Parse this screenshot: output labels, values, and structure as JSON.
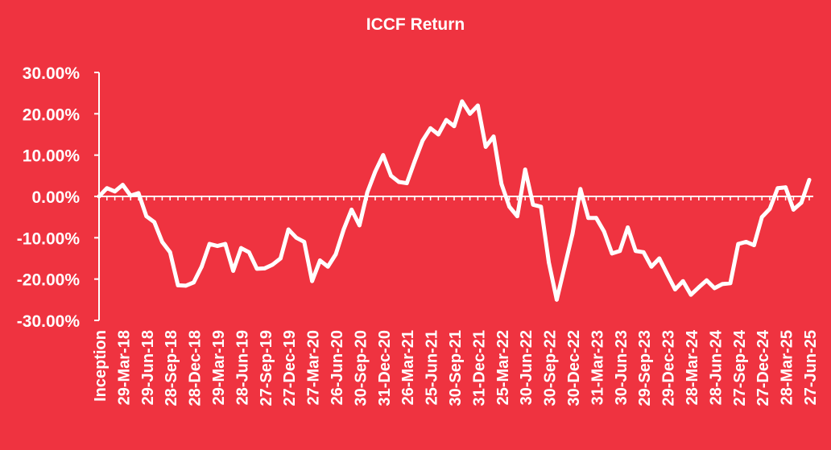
{
  "chart_data": {
    "type": "line",
    "title": "ICCF Return",
    "xlabel": "",
    "ylabel": "",
    "ylim": [
      -30,
      30
    ],
    "yticks": [
      "30.00%",
      "20.00%",
      "10.00%",
      "0.00%",
      "-10.00%",
      "-20.00%",
      "-30.00%"
    ],
    "ytick_values": [
      30,
      20,
      10,
      0,
      -10,
      -20,
      -30
    ],
    "x_tick_labels": [
      "Inception",
      "29-Mar-18",
      "29-Jun-18",
      "28-Sep-18",
      "28-Dec-18",
      "29-Mar-19",
      "28-Jun-19",
      "27-Sep-19",
      "27-Dec-19",
      "27-Mar-20",
      "26-Jun-20",
      "30-Sep-20",
      "31-Dec-20",
      "26-Mar-21",
      "25-Jun-21",
      "30-Sep-21",
      "31-Dec-21",
      "25-Mar-22",
      "30-Jun-22",
      "30-Sep-22",
      "30-Dec-22",
      "31-Mar-23",
      "30-Jun-23",
      "29-Sep-23",
      "29-Dec-23",
      "28-Mar-24",
      "28-Jun-24",
      "27-Sep-24",
      "27-Dec-24",
      "28-Mar-25",
      "27-Jun-25"
    ],
    "grid": false,
    "line_color": "#ffffff",
    "background": "#ef3340",
    "series": [
      {
        "values": [
          0,
          2,
          1.2,
          2.8,
          0.2,
          0.8,
          -4.8,
          -6.2,
          -11,
          -13.5,
          -21.5,
          -21.6,
          -20.8,
          -17,
          -11.5,
          -12,
          -11.5,
          -18,
          -12.5,
          -13.5,
          -17.5,
          -17.4,
          -16.5,
          -15,
          -8,
          -10,
          -11,
          -20.5,
          -15.5,
          -17,
          -14,
          -8,
          -3.2,
          -7,
          1,
          6,
          10,
          5,
          3.5,
          3.2,
          8.5,
          13.5,
          16.5,
          15,
          18.5,
          17,
          23,
          20,
          22,
          12,
          14.5,
          3,
          -2.5,
          -4.8,
          6.5,
          -2,
          -2.5,
          -16,
          -25,
          -17,
          -9,
          1.8,
          -5.2,
          -5.2,
          -8.5,
          -13.8,
          -13.2,
          -7.5,
          -13.2,
          -13.5,
          -17,
          -15,
          -18.8,
          -22.5,
          -20.5,
          -23.8,
          -22,
          -20.3,
          -22.2,
          -21.2,
          -21,
          -11.5,
          -11,
          -11.8,
          -5,
          -3,
          2,
          2.2,
          -3.2,
          -1.5,
          4
        ]
      }
    ]
  }
}
